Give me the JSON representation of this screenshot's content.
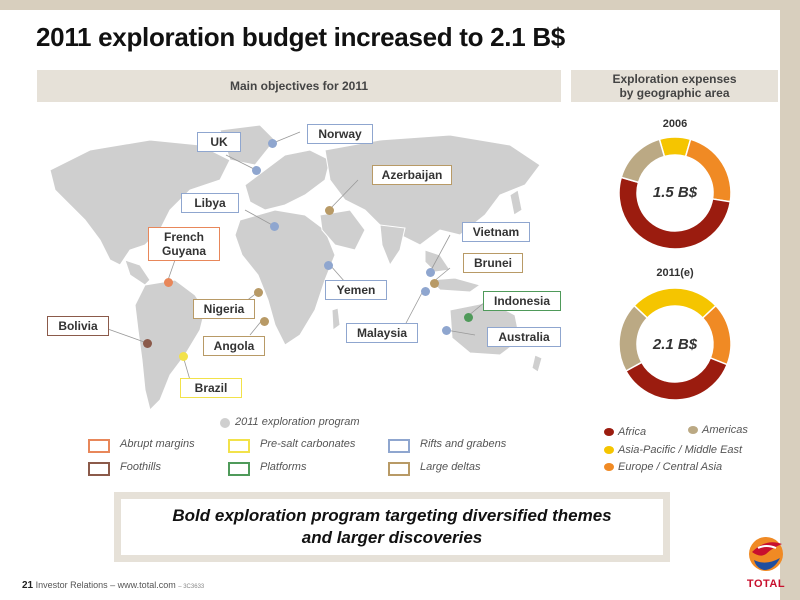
{
  "title": "2011 exploration budget increased to 2.1 B$",
  "left_header": "Main objectives for 2011",
  "right_header_line1": "Exploration expenses",
  "right_header_line2": "by geographic area",
  "map_labels": {
    "uk": "UK",
    "norway": "Norway",
    "azerbaijan": "Azerbaijan",
    "libya": "Libya",
    "french_guyana_1": "French",
    "french_guyana_2": "Guyana",
    "vietnam": "Vietnam",
    "brunei": "Brunei",
    "nigeria": "Nigeria",
    "yemen": "Yemen",
    "indonesia": "Indonesia",
    "bolivia": "Bolivia",
    "angola": "Angola",
    "malaysia": "Malaysia",
    "australia": "Australia",
    "brazil": "Brazil"
  },
  "program_legend": "2011 exploration program",
  "themes": [
    {
      "label": "Abrupt margins",
      "color": "#e8875a"
    },
    {
      "label": "Pre-salt carbonates",
      "color": "#f2e24a"
    },
    {
      "label": "Rifts and grabens",
      "color": "#8fa6cf"
    },
    {
      "label": "Foothills",
      "color": "#8b5a4a"
    },
    {
      "label": "Platforms",
      "color": "#4f9a5a"
    },
    {
      "label": "Large deltas",
      "color": "#b89a66"
    }
  ],
  "donuts": {
    "y2006": {
      "year": "2006",
      "center": "1.5 B$"
    },
    "y2011": {
      "year": "2011(e)",
      "center": "2.1 B$"
    }
  },
  "regions": [
    {
      "label": "Africa",
      "color": "#9b1c0f"
    },
    {
      "label": "Americas",
      "color": "#bba984"
    },
    {
      "label": "Asia-Pacific / Middle East",
      "color": "#f5c500"
    },
    {
      "label": "Europe / Central Asia",
      "color": "#f08a24"
    }
  ],
  "chart_data": [
    {
      "type": "pie",
      "title": "2006",
      "center_label": "1.5 B$",
      "categories": [
        "Africa",
        "Americas",
        "Asia-Pacific / Middle East",
        "Europe / Central Asia"
      ],
      "values": [
        52,
        16,
        9,
        23
      ]
    },
    {
      "type": "pie",
      "title": "2011(e)",
      "center_label": "2.1 B$",
      "categories": [
        "Africa",
        "Americas",
        "Asia-Pacific / Middle East",
        "Europe / Central Asia"
      ],
      "values": [
        36,
        20,
        26,
        18
      ]
    }
  ],
  "banner_line1": "Bold exploration program targeting diversified themes",
  "banner_line2": "and larger discoveries",
  "footer_page": "21",
  "footer_text": "Investor Relations – www.total.com",
  "footer_code": "– 3C3633",
  "logo_text": "TOTAL"
}
